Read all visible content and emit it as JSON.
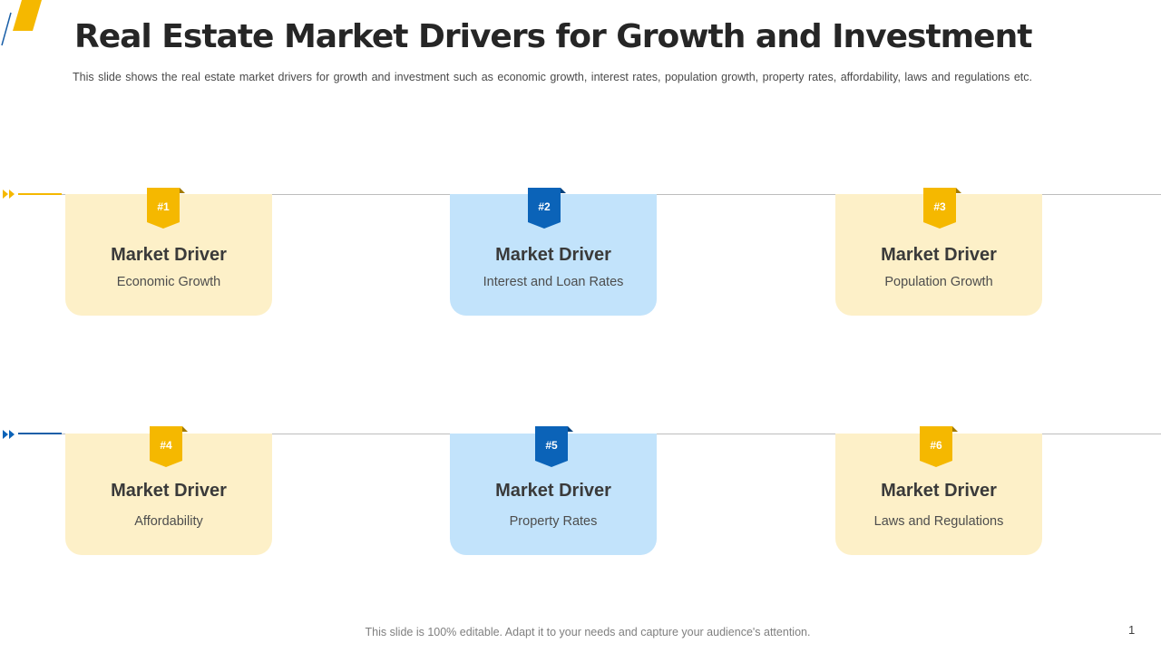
{
  "header": {
    "title": "Real Estate Market Drivers for Growth and Investment",
    "subtitle": "This slide shows the real estate market drivers for growth and investment such as economic growth, interest rates, population growth, property rates, affordability, laws and regulations etc."
  },
  "colors": {
    "accent_yellow": "#f5b800",
    "accent_blue": "#0b63b8",
    "card_yellow": "#fdf0c8",
    "card_blue": "#c2e3fb"
  },
  "drivers": [
    {
      "badge": "#1",
      "heading": "Market Driver",
      "text": "Economic Growth",
      "color": "yellow"
    },
    {
      "badge": "#2",
      "heading": "Market Driver",
      "text": "Interest and Loan Rates",
      "color": "blue"
    },
    {
      "badge": "#3",
      "heading": "Market Driver",
      "text": "Population Growth",
      "color": "yellow"
    },
    {
      "badge": "#4",
      "heading": "Market Driver",
      "text": "Affordability",
      "color": "yellow"
    },
    {
      "badge": "#5",
      "heading": "Market Driver",
      "text": "Property Rates",
      "color": "blue"
    },
    {
      "badge": "#6",
      "heading": "Market Driver",
      "text": "Laws and Regulations",
      "color": "yellow"
    }
  ],
  "footer": {
    "note": "This slide is 100% editable. Adapt it to your needs and capture your audience's attention.",
    "page_number": "1"
  }
}
